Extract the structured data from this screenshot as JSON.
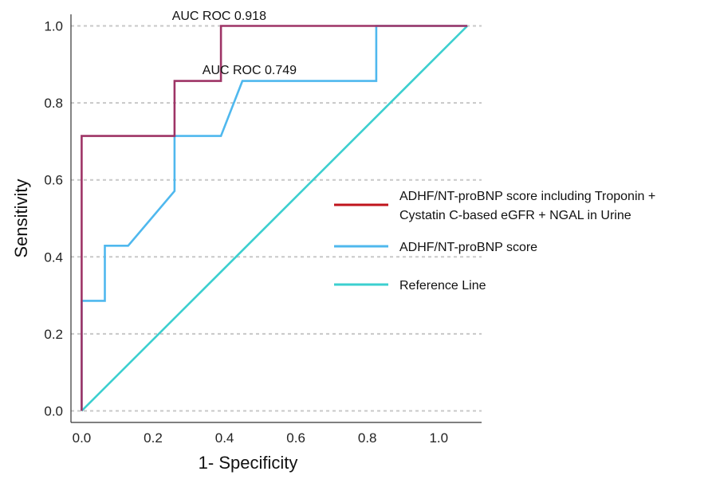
{
  "chart_data": {
    "type": "line",
    "xlabel": "1- Specificity",
    "ylabel": "Sensitivity",
    "xlim": [
      -0.03,
      1.12
    ],
    "ylim": [
      -0.03,
      1.03
    ],
    "x_ticks": [
      "0.0",
      "0.2",
      "0.4",
      "0.6",
      "0.8",
      "1.0"
    ],
    "y_ticks": [
      "0.0",
      "0.2",
      "0.4",
      "0.6",
      "0.8",
      "1.0"
    ],
    "grid": "horizontal-dashed",
    "legend_position": "right",
    "series": [
      {
        "name": "ADHF/NT-proBNP score including Troponin + Cystatin C-based eGFR + NGAL in Urine",
        "legend_lines": [
          "ADHF/NT-proBNP score including Troponin +",
          "Cystatin C-based eGFR + NGAL in Urine"
        ],
        "color": "#9e3466",
        "legend_color": "#c0141c",
        "x": [
          0.0,
          0.0,
          0.0,
          0.26,
          0.26,
          0.39,
          0.39,
          1.08
        ],
        "y": [
          0.0,
          0.0,
          0.714,
          0.714,
          0.857,
          0.857,
          1.0,
          1.0
        ]
      },
      {
        "name": "ADHF/NT-proBNP score",
        "legend_lines": [
          "ADHF/NT-proBNP score"
        ],
        "color": "#4fb8ee",
        "legend_color": "#4fb8ee",
        "x": [
          0.0,
          0.0,
          0.065,
          0.065,
          0.13,
          0.26,
          0.26,
          0.39,
          0.45,
          0.825,
          0.825,
          1.08
        ],
        "y": [
          0.0,
          0.286,
          0.286,
          0.429,
          0.429,
          0.571,
          0.714,
          0.714,
          0.857,
          0.857,
          1.0,
          1.0
        ]
      },
      {
        "name": "Reference Line",
        "legend_lines": [
          "Reference Line"
        ],
        "color": "#3ccfcf",
        "legend_color": "#3ccfcf",
        "x": [
          0.0,
          1.08
        ],
        "y": [
          0.0,
          1.0
        ]
      }
    ],
    "annotations": [
      {
        "text": "AUC ROC 0.918",
        "x": 0.385,
        "y": 1.015
      },
      {
        "text": "AUC ROC 0.749",
        "x": 0.47,
        "y": 0.875
      }
    ]
  }
}
